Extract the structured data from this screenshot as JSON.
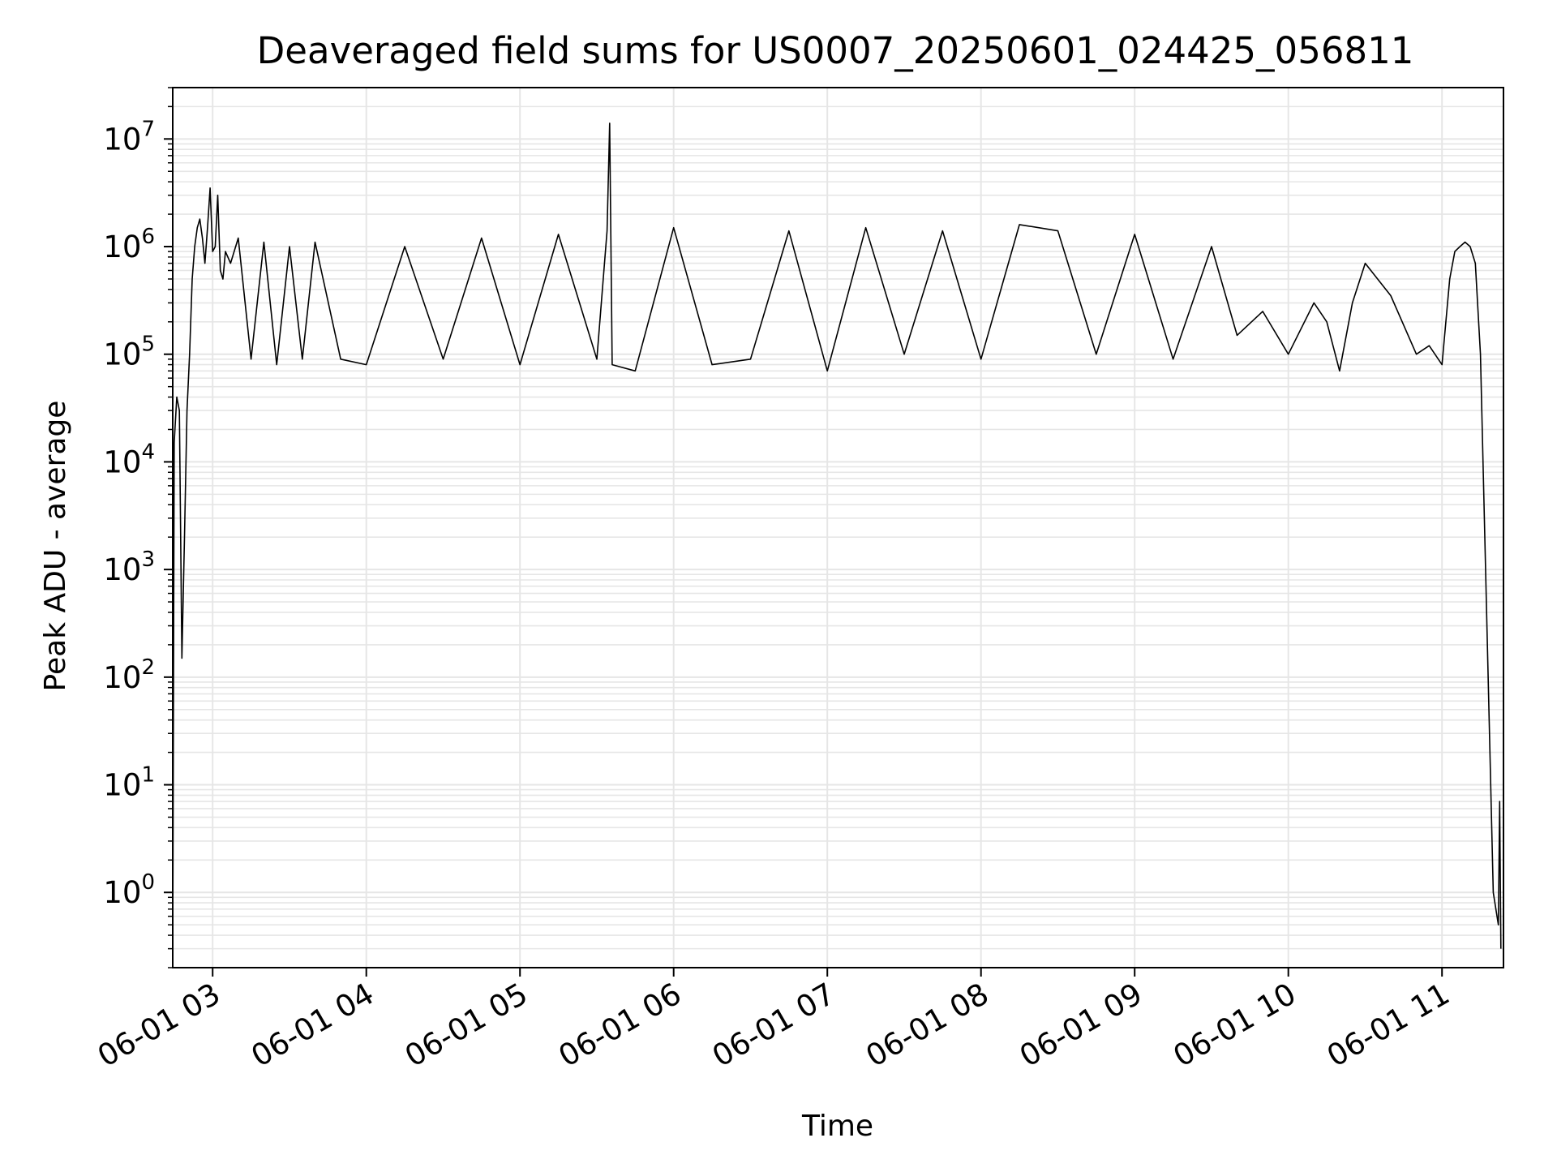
{
  "chart_data": {
    "type": "line",
    "title": "Deaveraged field sums for US0007_20250601_024425_056811",
    "xlabel": "Time",
    "ylabel": "Peak ADU - average",
    "xscale": "time",
    "yscale": "log",
    "xlim": [
      "2025-06-01 02:44:25",
      "2025-06-01 11:24:00"
    ],
    "ylim": [
      0.2,
      30000000
    ],
    "grid": true,
    "legend": "none",
    "line_color": "#000000",
    "xticks": [
      "06-01 03",
      "06-01 04",
      "06-01 05",
      "06-01 06",
      "06-01 07",
      "06-01 08",
      "06-01 09",
      "06-01 10",
      "06-01 11"
    ],
    "yticks": [
      {
        "base": "10",
        "exp": "0"
      },
      {
        "base": "10",
        "exp": "1"
      },
      {
        "base": "10",
        "exp": "2"
      },
      {
        "base": "10",
        "exp": "3"
      },
      {
        "base": "10",
        "exp": "4"
      },
      {
        "base": "10",
        "exp": "5"
      },
      {
        "base": "10",
        "exp": "6"
      },
      {
        "base": "10",
        "exp": "7"
      }
    ],
    "series": [
      {
        "x": [
          "02:44:25",
          "02:45:00",
          "02:46:00",
          "02:47:00",
          "02:48:00",
          "02:49:00",
          "02:50:00",
          "02:51:00",
          "02:52:00",
          "02:53:00",
          "02:54:00",
          "02:55:00",
          "02:56:00",
          "02:57:00",
          "02:58:00",
          "02:59:00",
          "03:00:00",
          "03:01:00",
          "03:02:00",
          "03:03:00",
          "03:04:00",
          "03:05:00",
          "03:07:00",
          "03:10:00",
          "03:15:00",
          "03:20:00",
          "03:25:00",
          "03:30:00",
          "03:35:00",
          "03:40:00",
          "03:50:00",
          "04:00:00",
          "04:15:00",
          "04:30:00",
          "04:45:00",
          "05:00:00",
          "05:15:00",
          "05:30:00",
          "05:34:00",
          "05:35:00",
          "05:36:00",
          "05:45:00",
          "06:00:00",
          "06:15:00",
          "06:30:00",
          "06:45:00",
          "07:00:00",
          "07:15:00",
          "07:30:00",
          "07:45:00",
          "08:00:00",
          "08:15:00",
          "08:30:00",
          "08:45:00",
          "09:00:00",
          "09:15:00",
          "09:30:00",
          "09:40:00",
          "09:50:00",
          "10:00:00",
          "10:10:00",
          "10:15:00",
          "10:20:00",
          "10:25:00",
          "10:30:00",
          "10:40:00",
          "10:50:00",
          "10:55:00",
          "11:00:00",
          "11:03:00",
          "11:05:00",
          "11:07:00",
          "11:09:00",
          "11:11:00",
          "11:13:00",
          "11:15:00",
          "11:18:00",
          "11:20:00",
          "11:22:00",
          "11:22:30",
          "11:23:00"
        ],
        "y": [
          0.25,
          15000,
          40000,
          30000,
          150,
          2000,
          30000,
          100000,
          500000,
          1000000,
          1500000,
          1800000,
          1200000,
          700000,
          1500000,
          3500000,
          900000,
          1000000,
          3000000,
          600000,
          500000,
          900000,
          700000,
          1200000,
          90000,
          1100000,
          80000,
          1000000,
          90000,
          1100000,
          90000,
          80000,
          1000000,
          90000,
          1200000,
          80000,
          1300000,
          90000,
          1400000,
          14000000,
          80000,
          70000,
          1500000,
          80000,
          90000,
          1400000,
          70000,
          1500000,
          100000,
          1400000,
          90000,
          1600000,
          1400000,
          100000,
          1300000,
          90000,
          1000000,
          150000,
          250000,
          100000,
          300000,
          200000,
          70000,
          300000,
          700000,
          350000,
          100000,
          120000,
          80000,
          500000,
          900000,
          1000000,
          1100000,
          1000000,
          700000,
          100000,
          100,
          1,
          0.5,
          7,
          0.3
        ]
      }
    ]
  }
}
